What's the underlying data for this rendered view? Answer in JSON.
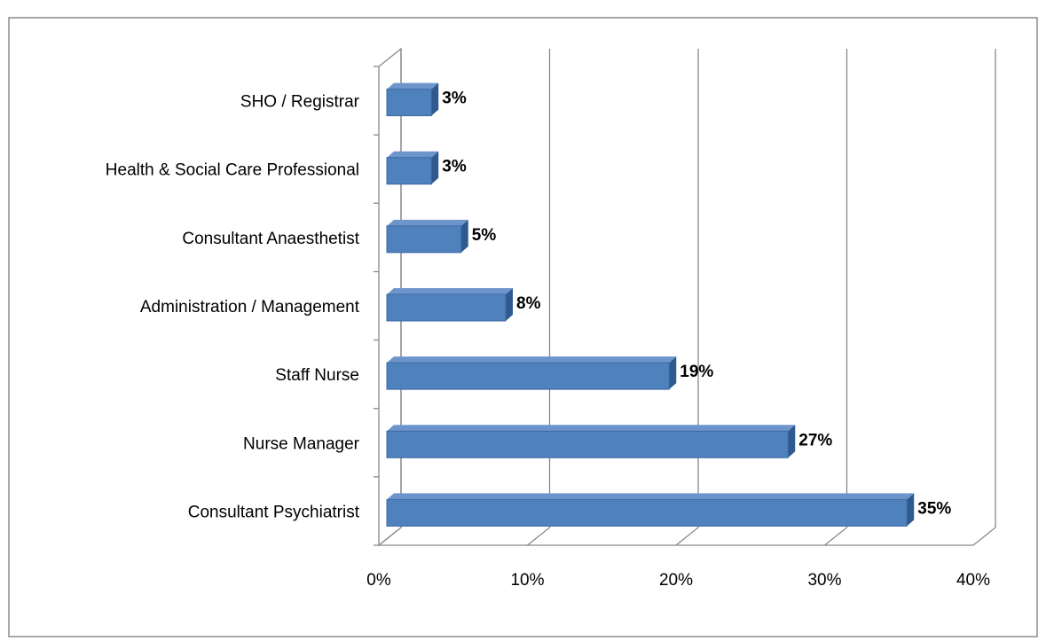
{
  "chart_data": {
    "type": "bar",
    "orientation": "horizontal",
    "categories": [
      "SHO / Registrar",
      "Health & Social Care Professional",
      "Consultant Anaesthetist",
      "Administration / Management",
      "Staff Nurse",
      "Nurse Manager",
      "Consultant Psychiatrist"
    ],
    "values": [
      3,
      3,
      5,
      8,
      19,
      27,
      35
    ],
    "value_labels": [
      "3%",
      "3%",
      "5%",
      "8%",
      "19%",
      "27%",
      "35%"
    ],
    "color": "#4f81bd",
    "xlim": [
      0,
      40
    ],
    "xticks": [
      {
        "value": 0,
        "label": "0%"
      },
      {
        "value": 10,
        "label": "10%"
      },
      {
        "value": 20,
        "label": "20%"
      },
      {
        "value": 30,
        "label": "30%"
      },
      {
        "value": 40,
        "label": "40%"
      }
    ],
    "grid": true
  }
}
